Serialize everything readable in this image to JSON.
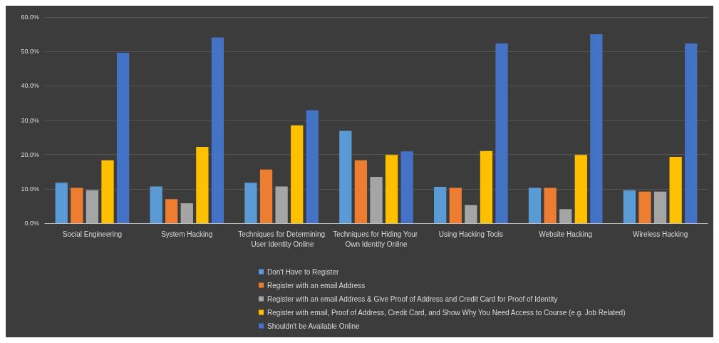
{
  "chart_data": {
    "type": "bar",
    "categories": [
      "Social Engineering",
      "System Hacking",
      "Techniques for Determining User Identity Online",
      "Techniques for Hiding Your Own Identity Online",
      "Using Hacking Tools",
      "Website Hacking",
      "Wireless Hacking"
    ],
    "series": [
      {
        "name": "Don't Have to Register",
        "color": "#5b9bd5",
        "values": [
          11.8,
          10.7,
          11.8,
          26.9,
          10.6,
          10.3,
          9.6
        ]
      },
      {
        "name": "Register with an email Address",
        "color": "#ed7d31",
        "values": [
          10.3,
          7.0,
          15.6,
          18.3,
          10.3,
          10.3,
          9.2
        ]
      },
      {
        "name": "Register with an email Address & Give Proof of Address and Credit Card for Proof of Identity",
        "color": "#a5a5a5",
        "values": [
          9.6,
          5.8,
          10.7,
          13.5,
          5.3,
          4.1,
          9.2
        ]
      },
      {
        "name": "Register with email, Proof of Address, Credit Card, and Show Why You Need Access to Course (e.g. Job Related)",
        "color": "#ffc000",
        "values": [
          18.3,
          22.2,
          28.5,
          19.9,
          21.0,
          19.9,
          19.3
        ]
      },
      {
        "name": "Shouldn't be Available Online",
        "color": "#4472c4",
        "values": [
          49.6,
          54.1,
          32.9,
          20.9,
          52.3,
          55.0,
          52.3
        ]
      }
    ],
    "ylim": [
      0,
      60
    ],
    "yticks": [
      {
        "value": 0,
        "label": "0.0%"
      },
      {
        "value": 10,
        "label": "10.0%"
      },
      {
        "value": 20,
        "label": "20.0%"
      },
      {
        "value": 30,
        "label": "30.0%"
      },
      {
        "value": 40,
        "label": "40.0%"
      },
      {
        "value": 50,
        "label": "50.0%"
      },
      {
        "value": 60,
        "label": "60.0%"
      }
    ],
    "grid": "y",
    "legend": "bottom"
  }
}
